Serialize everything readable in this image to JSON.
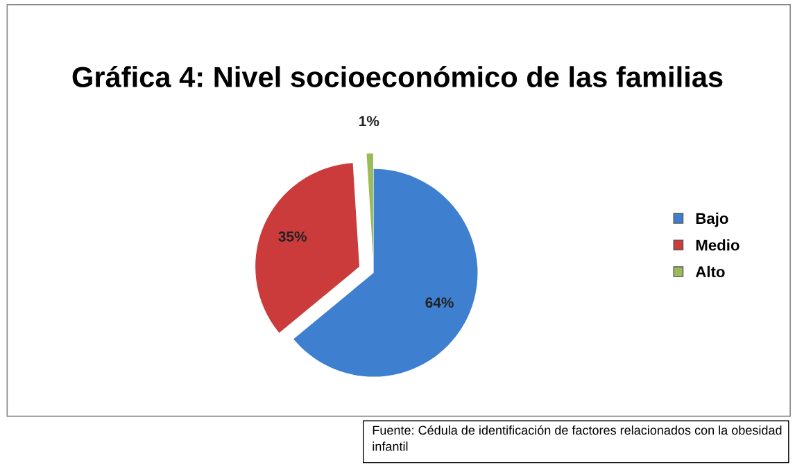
{
  "chart_data": {
    "type": "pie",
    "title": "Gráfica 4: Nivel socioeconómico de las familias",
    "categories": [
      "Bajo",
      "Medio",
      "Alto"
    ],
    "values": [
      64,
      35,
      1
    ],
    "colors": [
      "#3f7fd0",
      "#cc3b3b",
      "#9bbb59"
    ],
    "value_labels": [
      "64%",
      "35%",
      "1%"
    ],
    "legend": "right",
    "annotations": [
      "Fuente: Cédula de identificación de factores relacionados con la obesidad infantil"
    ]
  }
}
